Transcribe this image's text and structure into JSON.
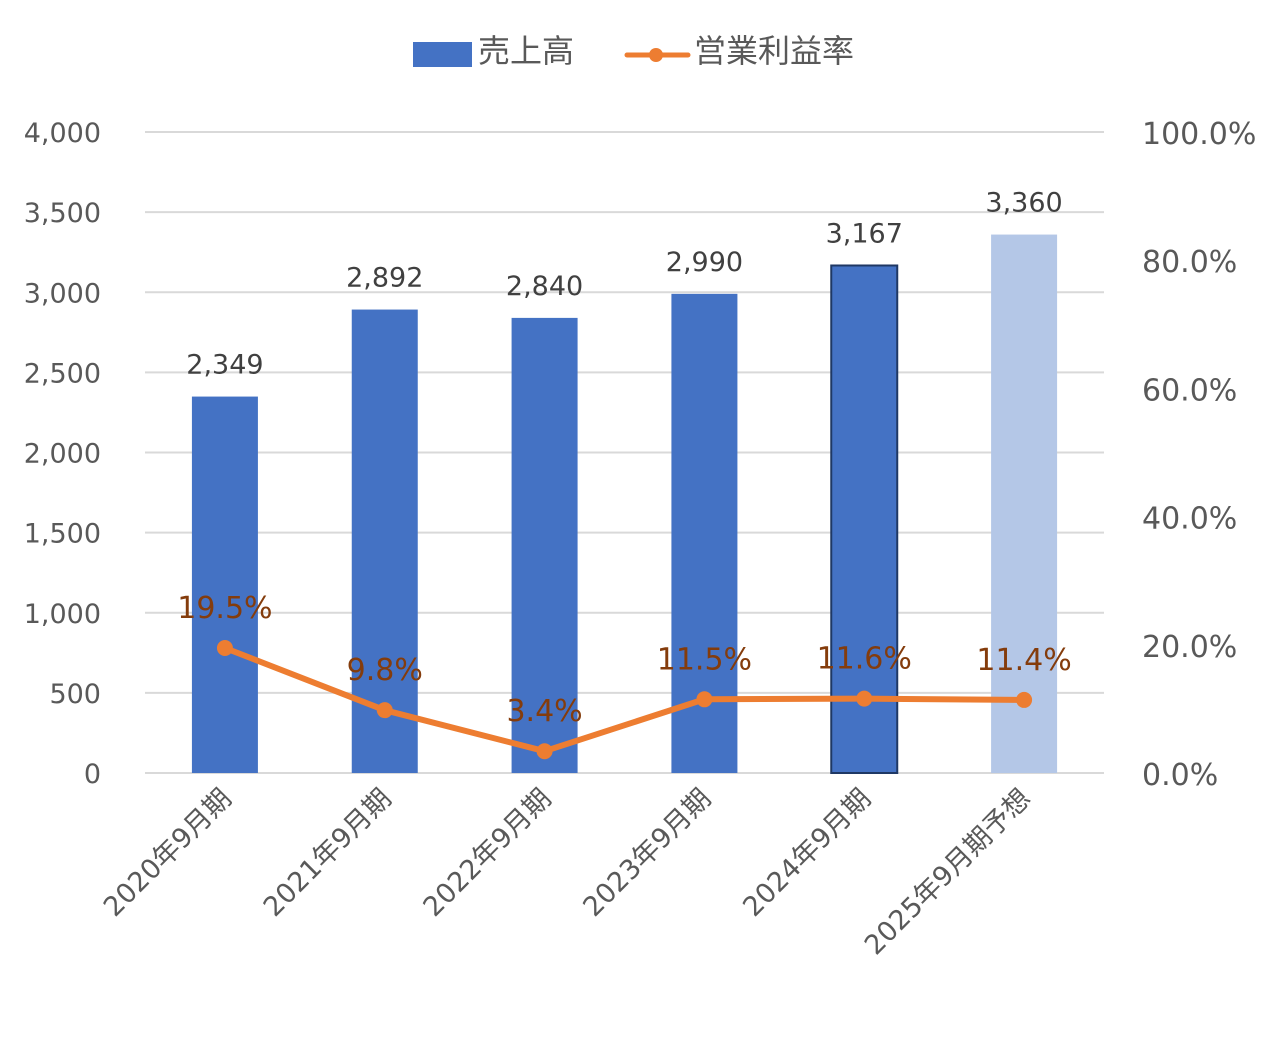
{
  "legend": {
    "sales_label": "売上高",
    "margin_label": "営業利益率"
  },
  "colors": {
    "bar": "#4472c4",
    "bar_forecast": "#b4c7e7",
    "bar_highlight_border": "#1f3864",
    "line": "#ed7d31",
    "line_label": "#843c0c",
    "grid": "#d9d9d9",
    "axis_text": "#595959"
  },
  "chart_data": {
    "type": "bar+line",
    "title": "",
    "categories": [
      "2020年9月期",
      "2021年9月期",
      "2022年9月期",
      "2023年9月期",
      "2024年9月期",
      "2025年9月期予想"
    ],
    "series": [
      {
        "name": "売上高",
        "type": "bar",
        "axis": "left",
        "values": [
          2349,
          2892,
          2840,
          2990,
          3167,
          3360
        ],
        "labels": [
          "2,349",
          "2,892",
          "2,840",
          "2,990",
          "3,167",
          "3,360"
        ]
      },
      {
        "name": "営業利益率",
        "type": "line",
        "axis": "right",
        "values": [
          19.5,
          9.8,
          3.4,
          11.5,
          11.6,
          11.4
        ],
        "labels": [
          "19.5%",
          "9.8%",
          "3.4%",
          "11.5%",
          "11.6%",
          "11.4%"
        ]
      }
    ],
    "y_left": {
      "range": [
        0,
        4000
      ],
      "ticks": [
        "0",
        "500",
        "1,000",
        "1,500",
        "2,000",
        "2,500",
        "3,000",
        "3,500",
        "4,000"
      ]
    },
    "y_right": {
      "range": [
        0,
        100
      ],
      "ticks": [
        "0.0%",
        "20.0%",
        "40.0%",
        "60.0%",
        "80.0%",
        "100.0%"
      ]
    },
    "grid": true,
    "legend_position": "top",
    "notes": "Last bar (予想) drawn in light blue; 2024 bar has dark outline"
  }
}
